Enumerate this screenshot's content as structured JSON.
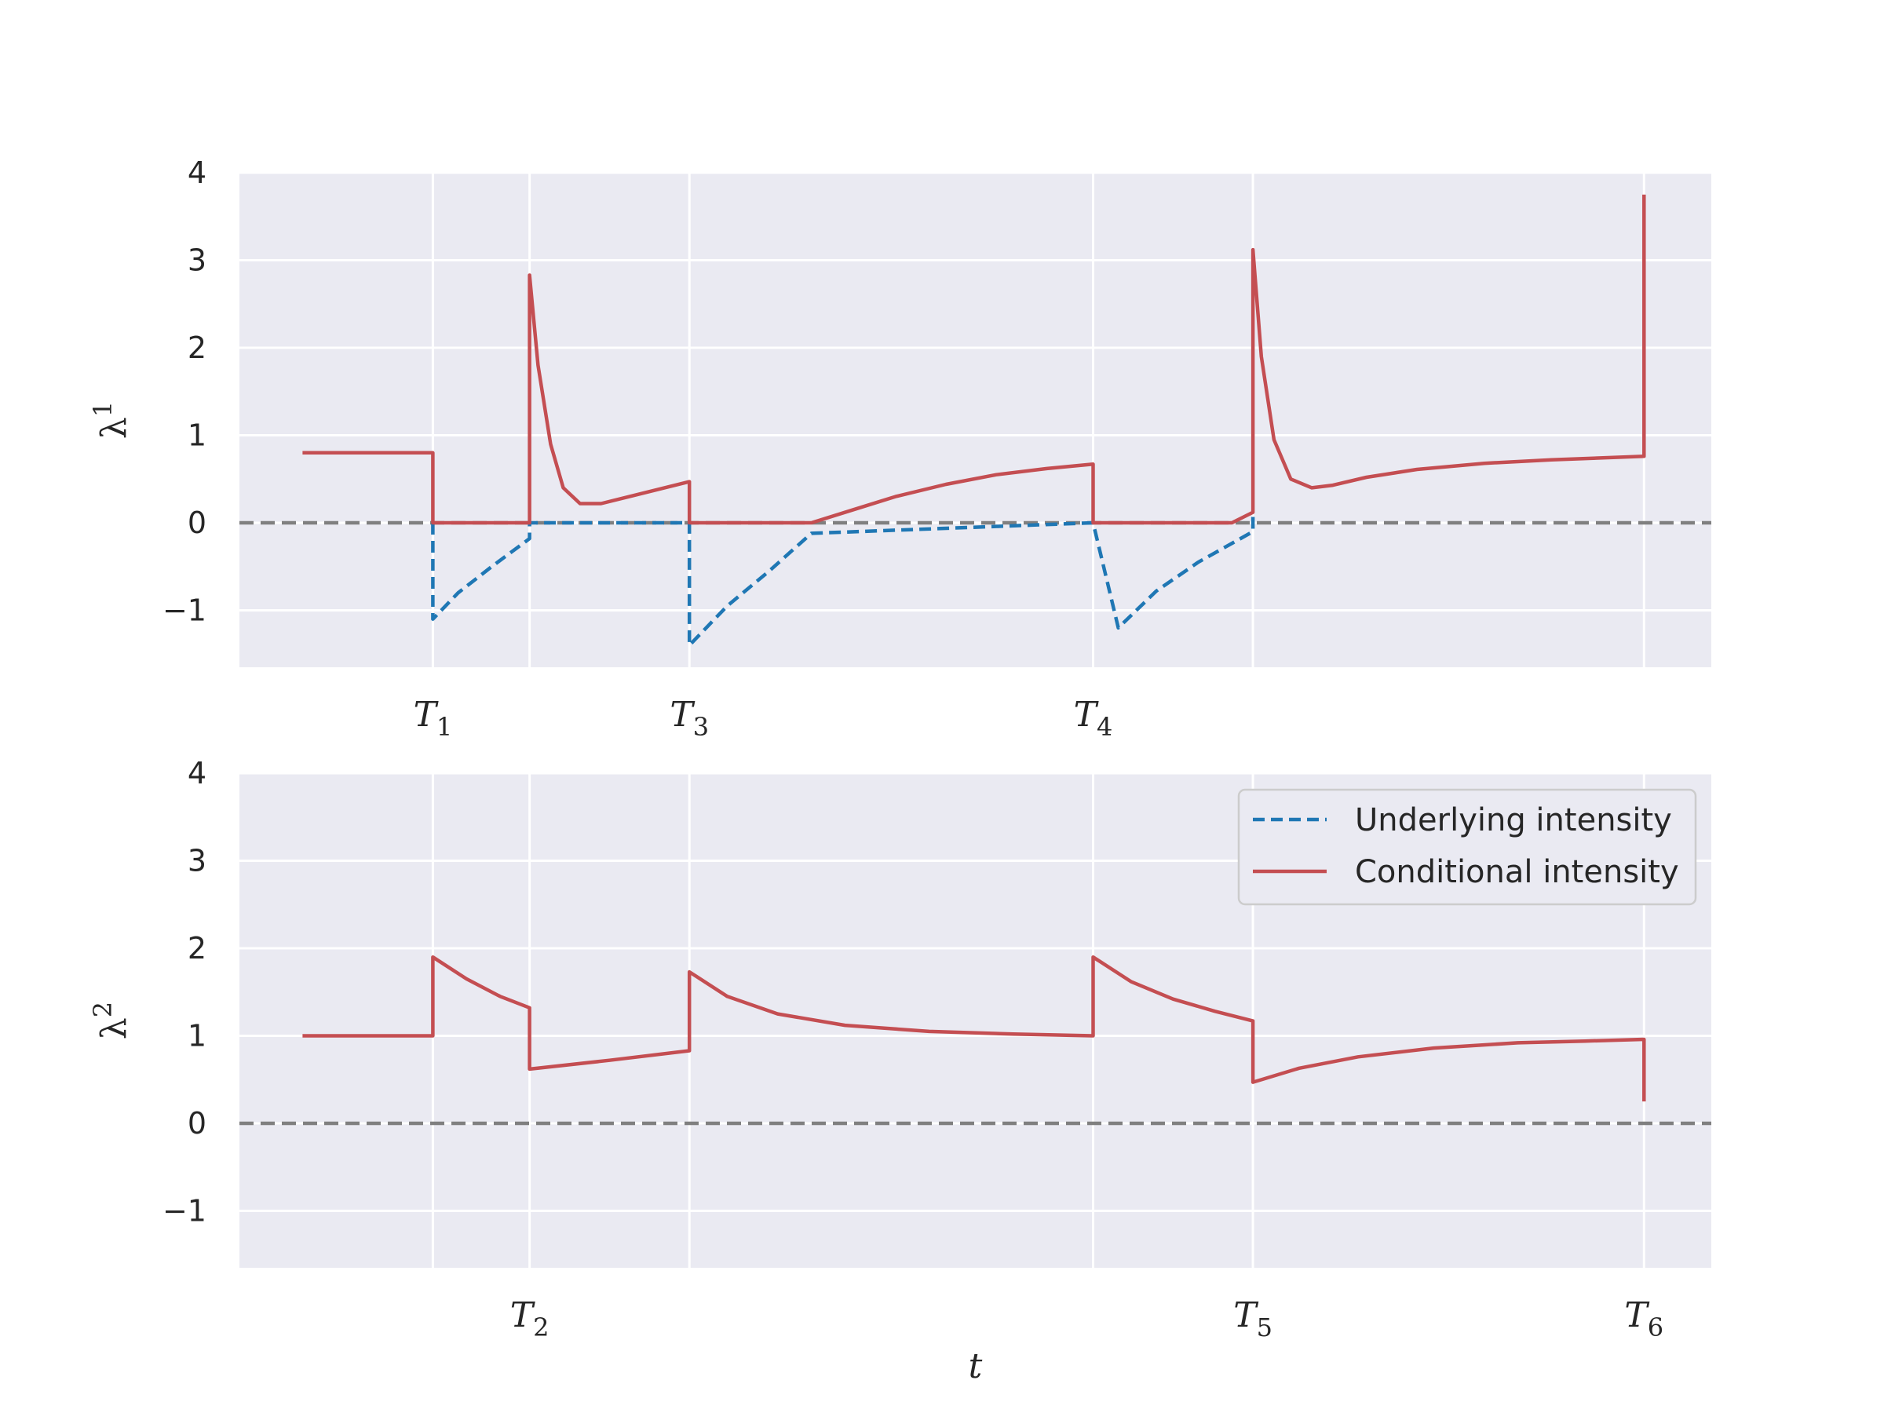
{
  "chart_data": [
    {
      "type": "line",
      "ylabel": "λ",
      "ylabel_sup": "1",
      "ylim": [
        -1.65,
        4
      ],
      "yticks": [
        -1,
        0,
        1,
        2,
        3,
        4
      ],
      "ytick_labels": [
        "−1",
        "0",
        "1",
        "2",
        "3",
        "4"
      ],
      "xlim": [
        0,
        17.5
      ],
      "grid": true,
      "events": [
        {
          "x": 2.3,
          "label": "T",
          "sub": "1"
        },
        {
          "x": 5.35,
          "label": "T",
          "sub": "3"
        },
        {
          "x": 10.15,
          "label": "T",
          "sub": "4"
        }
      ],
      "vertical_grid_x": [
        2.3,
        3.45,
        5.35,
        10.15,
        12.05,
        16.7
      ],
      "reference_line_y": 0,
      "series": [
        {
          "role": "underlying",
          "color": "#1f77b4",
          "style": "dashed",
          "x": [
            2.3,
            2.3,
            2.6,
            3.0,
            3.45,
            3.45,
            5.35,
            5.35,
            5.8,
            6.3,
            6.8,
            10.15,
            10.15,
            10.45,
            10.9,
            11.4,
            12.05,
            12.05
          ],
          "y": [
            0,
            -1.1,
            -0.8,
            -0.5,
            -0.18,
            0,
            0,
            -1.4,
            -0.95,
            -0.55,
            -0.12,
            0,
            0,
            -1.2,
            -0.78,
            -0.45,
            -0.1,
            0.12
          ]
        },
        {
          "role": "conditional",
          "color": "#c44e52",
          "style": "solid",
          "x": [
            0.75,
            2.3,
            2.3,
            3.45,
            3.45,
            3.55,
            3.7,
            3.85,
            4.05,
            4.3,
            5.35,
            5.35,
            6.8,
            7.3,
            7.8,
            8.4,
            9.0,
            9.6,
            10.15,
            10.15,
            11.8,
            12.05,
            12.05,
            12.15,
            12.3,
            12.5,
            12.75,
            13.0,
            13.4,
            14.0,
            14.8,
            15.6,
            16.7,
            16.7
          ],
          "y": [
            0.8,
            0.8,
            0,
            0,
            2.83,
            1.8,
            0.9,
            0.4,
            0.22,
            0.22,
            0.47,
            0,
            0,
            0.15,
            0.3,
            0.44,
            0.55,
            0.62,
            0.67,
            0,
            0,
            0.12,
            3.12,
            1.9,
            0.95,
            0.5,
            0.4,
            0.43,
            0.52,
            0.61,
            0.68,
            0.72,
            0.76,
            3.75
          ]
        }
      ]
    },
    {
      "type": "line",
      "ylabel": "λ",
      "ylabel_sup": "2",
      "xlabel": "t",
      "ylim": [
        -1.65,
        4
      ],
      "yticks": [
        -1,
        0,
        1,
        2,
        3,
        4
      ],
      "ytick_labels": [
        "−1",
        "0",
        "1",
        "2",
        "3",
        "4"
      ],
      "xlim": [
        0,
        17.5
      ],
      "grid": true,
      "events": [
        {
          "x": 3.45,
          "label": "T",
          "sub": "2"
        },
        {
          "x": 12.05,
          "label": "T",
          "sub": "5"
        },
        {
          "x": 16.7,
          "label": "T",
          "sub": "6"
        }
      ],
      "vertical_grid_x": [
        2.3,
        3.45,
        5.35,
        10.15,
        12.05,
        16.7
      ],
      "reference_line_y": 0,
      "legend": {
        "placement": "upper-right",
        "entries": [
          {
            "label": "Underlying intensity",
            "color": "#1f77b4",
            "style": "dashed"
          },
          {
            "label": "Conditional intensity",
            "color": "#c44e52",
            "style": "solid"
          }
        ]
      },
      "series": [
        {
          "role": "conditional",
          "color": "#c44e52",
          "style": "solid",
          "x": [
            0.75,
            2.3,
            2.3,
            2.7,
            3.1,
            3.45,
            3.45,
            4.4,
            5.35,
            5.35,
            5.8,
            6.4,
            7.2,
            8.2,
            9.2,
            10.15,
            10.15,
            10.6,
            11.1,
            11.6,
            12.05,
            12.05,
            12.6,
            13.3,
            14.2,
            15.2,
            16.0,
            16.7,
            16.7
          ],
          "y": [
            1.0,
            1.0,
            1.9,
            1.65,
            1.45,
            1.32,
            0.62,
            0.72,
            0.83,
            1.73,
            1.45,
            1.25,
            1.12,
            1.05,
            1.02,
            1.0,
            1.9,
            1.62,
            1.42,
            1.28,
            1.17,
            0.47,
            0.63,
            0.76,
            0.86,
            0.92,
            0.94,
            0.96,
            0.25
          ]
        }
      ]
    }
  ]
}
